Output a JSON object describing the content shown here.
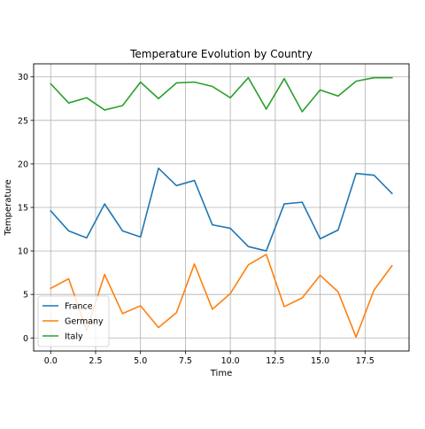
{
  "chart_data": {
    "type": "line",
    "title": "Temperature Evolution by Country",
    "xlabel": "Time",
    "ylabel": "Temperature",
    "xlim": [
      -0.95,
      19.95
    ],
    "ylim": [
      -1.5,
      31.5
    ],
    "xticks": [
      0,
      2.5,
      5,
      7.5,
      10,
      12.5,
      15,
      17.5
    ],
    "xtick_labels": [
      "0.0",
      "2.5",
      "5.0",
      "7.5",
      "10.0",
      "12.5",
      "15.0",
      "17.5"
    ],
    "yticks": [
      0,
      5,
      10,
      15,
      20,
      25,
      30
    ],
    "ytick_labels": [
      "0",
      "5",
      "10",
      "15",
      "20",
      "25",
      "30"
    ],
    "grid": true,
    "legend_position": "lower-left",
    "x": [
      0,
      1,
      2,
      3,
      4,
      5,
      6,
      7,
      8,
      9,
      10,
      11,
      12,
      13,
      14,
      15,
      16,
      17,
      18,
      19
    ],
    "series": [
      {
        "name": "France",
        "color": "#1f77b4",
        "values": [
          14.6,
          12.3,
          11.5,
          15.4,
          12.3,
          11.6,
          19.5,
          17.5,
          18.1,
          13.0,
          12.6,
          10.5,
          10.0,
          15.4,
          15.6,
          11.4,
          12.4,
          18.9,
          18.7,
          16.6
        ]
      },
      {
        "name": "Germany",
        "color": "#ff7f0e",
        "values": [
          5.7,
          6.8,
          0.9,
          7.3,
          2.8,
          3.7,
          1.2,
          2.9,
          8.5,
          3.3,
          5.1,
          8.4,
          9.6,
          3.6,
          4.6,
          7.2,
          5.3,
          0.1,
          5.5,
          8.3
        ]
      },
      {
        "name": "Italy",
        "color": "#2ca02c",
        "values": [
          29.2,
          27.0,
          27.6,
          26.2,
          26.7,
          29.4,
          27.5,
          29.3,
          29.4,
          28.9,
          27.6,
          29.9,
          26.3,
          29.8,
          26.0,
          28.5,
          27.8,
          29.5,
          29.9,
          29.9
        ]
      }
    ]
  }
}
